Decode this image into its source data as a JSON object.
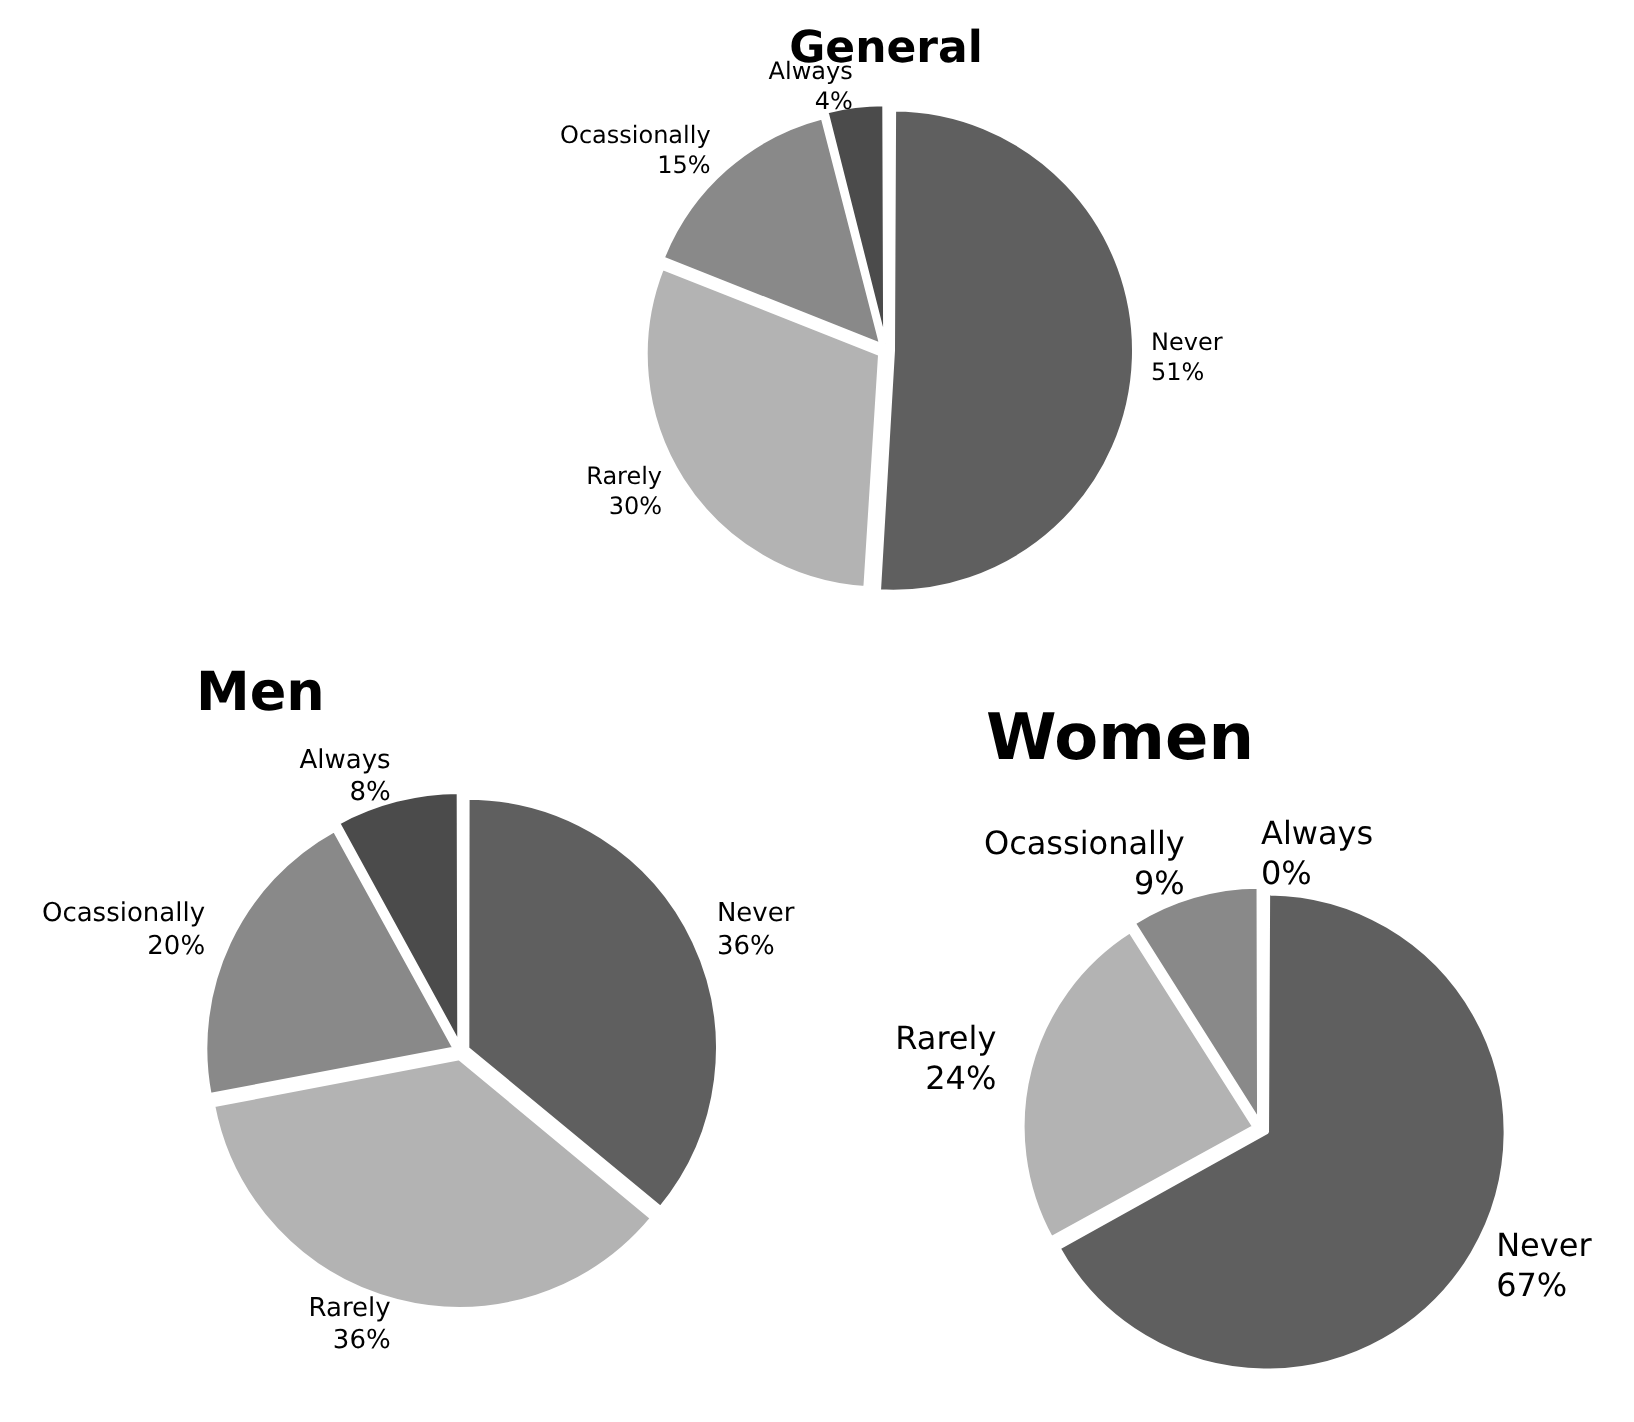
{
  "chart_data": [
    {
      "type": "pie",
      "title": "General",
      "categories": [
        "Never",
        "Rarely",
        "Ocassionally",
        "Always"
      ],
      "values": [
        51,
        30,
        15,
        4
      ],
      "colors": [
        "#5f5f5f",
        "#b3b3b3",
        "#898989",
        "#4b4b4b"
      ],
      "value_labels": [
        "51%",
        "30%",
        "15%",
        "4%"
      ]
    },
    {
      "type": "pie",
      "title": "Men",
      "categories": [
        "Never",
        "Rarely",
        "Ocassionally",
        "Always"
      ],
      "values": [
        36,
        36,
        20,
        8
      ],
      "colors": [
        "#5f5f5f",
        "#b3b3b3",
        "#898989",
        "#4b4b4b"
      ],
      "value_labels": [
        "36%",
        "36%",
        "20%",
        "8%"
      ]
    },
    {
      "type": "pie",
      "title": "Women",
      "categories": [
        "Never",
        "Rarely",
        "Ocassionally",
        "Always"
      ],
      "values": [
        67,
        24,
        9,
        0
      ],
      "colors": [
        "#5f5f5f",
        "#b3b3b3",
        "#898989",
        "#4b4b4b"
      ],
      "value_labels": [
        "67%",
        "24%",
        "9%",
        "0%"
      ]
    }
  ]
}
